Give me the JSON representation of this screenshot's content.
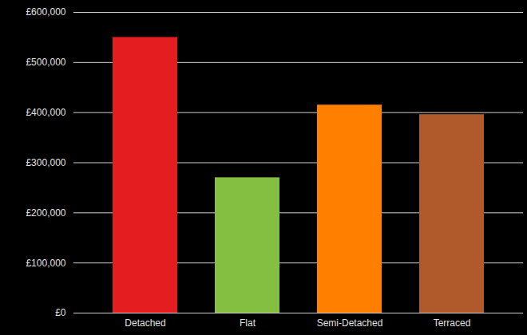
{
  "chart_data": {
    "type": "bar",
    "categories": [
      "Detached",
      "Flat",
      "Semi-Detached",
      "Terraced"
    ],
    "values": [
      550000,
      270000,
      415000,
      396000
    ],
    "colors": [
      "#e41e20",
      "#84bf41",
      "#ff7f00",
      "#b0592a"
    ],
    "ylim": [
      0,
      600000
    ],
    "yticks": [
      {
        "value": 0,
        "label": "£0"
      },
      {
        "value": 100000,
        "label": "£100,000"
      },
      {
        "value": 200000,
        "label": "£200,000"
      },
      {
        "value": 300000,
        "label": "£300,000"
      },
      {
        "value": 400000,
        "label": "£400,000"
      },
      {
        "value": 500000,
        "label": "£500,000"
      },
      {
        "value": 600000,
        "label": "£600,000"
      }
    ],
    "grid": true
  }
}
